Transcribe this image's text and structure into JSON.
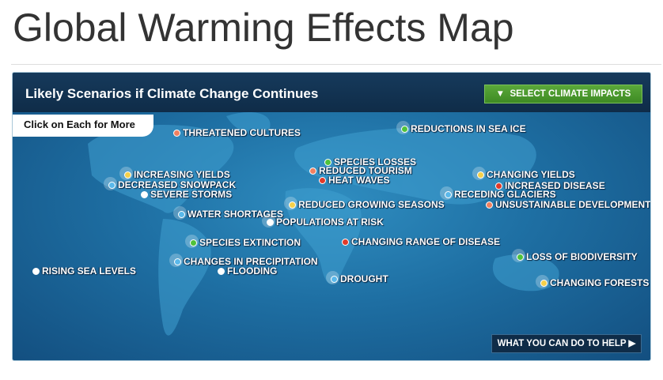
{
  "page_title": "Global Warming Effects Map",
  "map": {
    "heading": "Likely Scenarios if Climate Change Continues",
    "select_button": "SELECT CLIMATE IMPACTS",
    "hint": "Click on Each for More",
    "help_button": "WHAT YOU CAN DO TO HELP",
    "markers": [
      {
        "label": "THREATENED CULTURES"
      },
      {
        "label": "REDUCTIONS IN SEA ICE"
      },
      {
        "label": "SPECIES LOSSES"
      },
      {
        "label": "REDUCED TOURISM"
      },
      {
        "label": "HEAT WAVES"
      },
      {
        "label": "INCREASING YIELDS"
      },
      {
        "label": "DECREASED SNOWPACK"
      },
      {
        "label": "SEVERE STORMS"
      },
      {
        "label": "CHANGING YIELDS"
      },
      {
        "label": "INCREASED DISEASE"
      },
      {
        "label": "RECEDING GLACIERS"
      },
      {
        "label": "UNSUSTAINABLE DEVELOPMENT"
      },
      {
        "label": "WATER SHORTAGES"
      },
      {
        "label": "REDUCED GROWING SEASONS"
      },
      {
        "label": "POPULATIONS AT RISK"
      },
      {
        "label": "SPECIES EXTINCTION"
      },
      {
        "label": "CHANGING RANGE OF DISEASE"
      },
      {
        "label": "CHANGES IN PRECIPITATION"
      },
      {
        "label": "FLOODING"
      },
      {
        "label": "RISING SEA LEVELS"
      },
      {
        "label": "DROUGHT"
      },
      {
        "label": "LOSS OF BIODIVERSITY"
      },
      {
        "label": "CHANGING FORESTS"
      }
    ]
  }
}
